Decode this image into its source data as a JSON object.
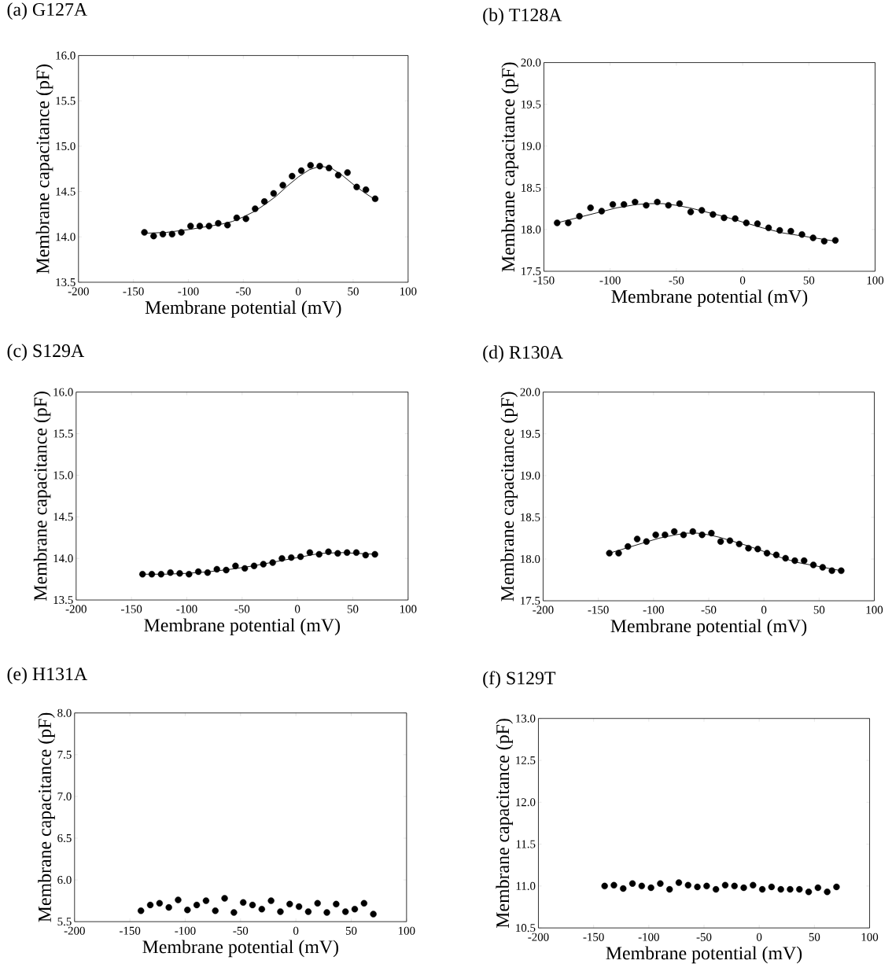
{
  "chart_data": [
    {
      "type": "scatter",
      "title": "(a) G127A",
      "xlabel": "Membrane potential (mV)",
      "ylabel": "Membrane capacitance (pF)",
      "xlim": [
        -200,
        100
      ],
      "ylim": [
        13.5,
        16.0
      ],
      "xticks": [
        -200,
        -150,
        -100,
        -50,
        0,
        50,
        100
      ],
      "yticks": [
        {
          "value": 13.5,
          "label": "13.5"
        },
        {
          "value": 14,
          "label": "14.0"
        },
        {
          "value": 14.5,
          "label": "14.5"
        },
        {
          "value": 15,
          "label": "15.0"
        },
        {
          "value": 15.5,
          "label": "15.5"
        },
        {
          "value": 16,
          "label": "16.0"
        }
      ],
      "series": [
        {
          "marker": "circle",
          "color": "#000000",
          "x": [
            -140,
            -131.6,
            -123.2,
            -114.8,
            -106.4,
            -98,
            -89.6,
            -81.2,
            -72.8,
            -64.4,
            -56,
            -47.6,
            -39.2,
            -30.8,
            -22.4,
            -14,
            -5.6,
            2.8,
            11.2,
            19.6,
            28,
            36.4,
            44.8,
            53.2,
            61.6,
            70
          ],
          "values": [
            14.05,
            14.01,
            14.03,
            14.03,
            14.05,
            14.12,
            14.12,
            14.12,
            14.15,
            14.13,
            14.21,
            14.2,
            14.31,
            14.39,
            14.48,
            14.57,
            14.67,
            14.73,
            14.79,
            14.78,
            14.76,
            14.68,
            14.71,
            14.55,
            14.52,
            14.42
          ]
        },
        {
          "type": "line",
          "color": "#000000",
          "x": [
            -140,
            -120,
            -100,
            -85,
            -70,
            -60,
            -50,
            -40,
            -30,
            -20,
            -10,
            0,
            10,
            20,
            30,
            40,
            50,
            60,
            70
          ],
          "values": [
            14.04,
            14.05,
            14.08,
            14.11,
            14.14,
            14.17,
            14.22,
            14.28,
            14.36,
            14.45,
            14.56,
            14.66,
            14.74,
            14.78,
            14.76,
            14.68,
            14.58,
            14.49,
            14.41
          ]
        }
      ]
    },
    {
      "type": "scatter",
      "title": "(b) T128A",
      "xlabel": "Membrane potential (mV)",
      "ylabel": "Membrane capacitance (pF)",
      "xlim": [
        -150,
        100
      ],
      "ylim": [
        17.5,
        20.0
      ],
      "xticks": [
        -150,
        -100,
        -50,
        0,
        50,
        100
      ],
      "yticks": [
        {
          "value": 17.5,
          "label": "17.5"
        },
        {
          "value": 18,
          "label": "18.0"
        },
        {
          "value": 18.5,
          "label": "18.5"
        },
        {
          "value": 19,
          "label": "19.0"
        },
        {
          "value": 19.5,
          "label": "19.5"
        },
        {
          "value": 20,
          "label": "20.0"
        }
      ],
      "series": [
        {
          "marker": "circle",
          "color": "#000000",
          "x": [
            -140,
            -131.6,
            -123.2,
            -114.8,
            -106.4,
            -98,
            -89.6,
            -81.2,
            -72.8,
            -64.4,
            -56,
            -47.6,
            -39.2,
            -30.8,
            -22.4,
            -14,
            -5.6,
            2.8,
            11.2,
            19.6,
            28,
            36.4,
            44.8,
            53.2,
            61.6,
            70
          ],
          "values": [
            18.08,
            18.08,
            18.16,
            18.26,
            18.22,
            18.3,
            18.3,
            18.33,
            18.29,
            18.33,
            18.29,
            18.31,
            18.21,
            18.23,
            18.18,
            18.14,
            18.13,
            18.08,
            18.07,
            18.02,
            17.99,
            17.98,
            17.94,
            17.9,
            17.86,
            17.87
          ]
        },
        {
          "type": "line",
          "color": "#000000",
          "x": [
            -140,
            -125,
            -110,
            -95,
            -80,
            -70,
            -60,
            -50,
            -40,
            -30,
            -15,
            0,
            15,
            30,
            50,
            70
          ],
          "values": [
            18.08,
            18.14,
            18.2,
            18.26,
            18.3,
            18.31,
            18.31,
            18.29,
            18.26,
            18.22,
            18.16,
            18.09,
            18.02,
            17.96,
            17.91,
            17.86
          ]
        }
      ]
    },
    {
      "type": "scatter",
      "title": "(c) S129A",
      "xlabel": "Membrane potential (mV)",
      "ylabel": "Membrane capacitance (pF)",
      "xlim": [
        -200,
        100
      ],
      "ylim": [
        13.5,
        16.0
      ],
      "xticks": [
        -200,
        -150,
        -100,
        -50,
        0,
        50,
        100
      ],
      "yticks": [
        {
          "value": 13.5,
          "label": "13.5"
        },
        {
          "value": 14,
          "label": "14.0"
        },
        {
          "value": 14.5,
          "label": "14.5"
        },
        {
          "value": 15,
          "label": "15.0"
        },
        {
          "value": 15.5,
          "label": "15.5"
        },
        {
          "value": 16,
          "label": "16.0"
        }
      ],
      "series": [
        {
          "marker": "circle",
          "color": "#000000",
          "x": [
            -140,
            -131.6,
            -123.2,
            -114.8,
            -106.4,
            -98,
            -89.6,
            -81.2,
            -72.8,
            -64.4,
            -56,
            -47.6,
            -39.2,
            -30.8,
            -22.4,
            -14,
            -5.6,
            2.8,
            11.2,
            19.6,
            28,
            36.4,
            44.8,
            53.2,
            61.6,
            70
          ],
          "values": [
            13.81,
            13.81,
            13.81,
            13.83,
            13.82,
            13.81,
            13.84,
            13.83,
            13.87,
            13.86,
            13.91,
            13.88,
            13.91,
            13.93,
            13.95,
            14.0,
            14.01,
            14.02,
            14.07,
            14.05,
            14.08,
            14.06,
            14.07,
            14.07,
            14.04,
            14.05
          ]
        },
        {
          "type": "line",
          "color": "#000000",
          "x": [
            -140,
            -120,
            -100,
            -80,
            -60,
            -40,
            -20,
            0,
            20,
            40,
            55,
            70
          ],
          "values": [
            13.81,
            13.81,
            13.82,
            13.84,
            13.87,
            13.91,
            13.96,
            14.01,
            14.06,
            14.07,
            14.06,
            14.05
          ]
        }
      ]
    },
    {
      "type": "scatter",
      "title": "(d) R130A",
      "xlabel": "Membrane potential (mV)",
      "ylabel": "Membrane capacitance (pF)",
      "xlim": [
        -200,
        100
      ],
      "ylim": [
        17.5,
        20.0
      ],
      "xticks": [
        -200,
        -150,
        -100,
        -50,
        0,
        50,
        100
      ],
      "yticks": [
        {
          "value": 17.5,
          "label": "17.5"
        },
        {
          "value": 18,
          "label": "18.0"
        },
        {
          "value": 18.5,
          "label": "18.5"
        },
        {
          "value": 19,
          "label": "19.0"
        },
        {
          "value": 19.5,
          "label": "19.5"
        },
        {
          "value": 20,
          "label": "20.0"
        }
      ],
      "series": [
        {
          "marker": "circle",
          "color": "#000000",
          "x": [
            -140,
            -131.6,
            -123.2,
            -114.8,
            -106.4,
            -98,
            -89.6,
            -81.2,
            -72.8,
            -64.4,
            -56,
            -47.6,
            -39.2,
            -30.8,
            -22.4,
            -14,
            -5.6,
            2.8,
            11.2,
            19.6,
            28,
            36.4,
            44.8,
            53.2,
            61.6,
            70
          ],
          "values": [
            18.07,
            18.07,
            18.15,
            18.24,
            18.21,
            18.29,
            18.29,
            18.33,
            18.29,
            18.33,
            18.29,
            18.31,
            18.21,
            18.22,
            18.18,
            18.13,
            18.12,
            18.07,
            18.05,
            18.01,
            17.98,
            17.98,
            17.93,
            17.9,
            17.86,
            17.86
          ]
        },
        {
          "type": "line",
          "color": "#000000",
          "x": [
            -140,
            -125,
            -110,
            -95,
            -80,
            -70,
            -60,
            -50,
            -40,
            -30,
            -15,
            0,
            15,
            30,
            50,
            70
          ],
          "values": [
            18.07,
            18.13,
            18.19,
            18.25,
            18.29,
            18.31,
            18.31,
            18.29,
            18.26,
            18.22,
            18.16,
            18.09,
            18.02,
            17.96,
            17.91,
            17.86
          ]
        }
      ]
    },
    {
      "type": "scatter",
      "title": "(e) H131A",
      "xlabel": "Membrane potential (mV)",
      "ylabel": "Membrane capacitance (pF)",
      "xlim": [
        -200,
        100
      ],
      "ylim": [
        5.5,
        8.0
      ],
      "xticks": [
        -200,
        -150,
        -100,
        -50,
        0,
        50,
        100
      ],
      "yticks": [
        {
          "value": 5.5,
          "label": "5.5"
        },
        {
          "value": 6,
          "label": "6.0"
        },
        {
          "value": 6.5,
          "label": "6.5"
        },
        {
          "value": 7,
          "label": "7.0"
        },
        {
          "value": 7.5,
          "label": "7.5"
        },
        {
          "value": 8,
          "label": "8.0"
        }
      ],
      "series": [
        {
          "marker": "circle",
          "color": "#000000",
          "x": [
            -140,
            -131.6,
            -123.2,
            -114.8,
            -106.4,
            -98,
            -89.6,
            -81.2,
            -72.8,
            -64.4,
            -56,
            -47.6,
            -39.2,
            -30.8,
            -22.4,
            -14,
            -5.6,
            2.8,
            11.2,
            19.6,
            28,
            36.4,
            44.8,
            53.2,
            61.6,
            70
          ],
          "values": [
            5.63,
            5.7,
            5.72,
            5.67,
            5.76,
            5.64,
            5.7,
            5.75,
            5.63,
            5.78,
            5.61,
            5.73,
            5.7,
            5.65,
            5.75,
            5.62,
            5.71,
            5.68,
            5.62,
            5.72,
            5.61,
            5.71,
            5.62,
            5.65,
            5.72,
            5.59
          ]
        }
      ]
    },
    {
      "type": "scatter",
      "title": "(f) S129T",
      "xlabel": "Membrane potential (mV)",
      "ylabel": "Membrane capacitance (pF)",
      "xlim": [
        -200,
        100
      ],
      "ylim": [
        10.5,
        13.0
      ],
      "xticks": [
        -200,
        -150,
        -100,
        -50,
        0,
        50,
        100
      ],
      "yticks": [
        {
          "value": 10.5,
          "label": "10.5"
        },
        {
          "value": 11,
          "label": "11.0"
        },
        {
          "value": 11.5,
          "label": "11.5"
        },
        {
          "value": 12,
          "label": "12.0"
        },
        {
          "value": 12.5,
          "label": "12.5"
        },
        {
          "value": 13,
          "label": "13.0"
        }
      ],
      "series": [
        {
          "marker": "circle",
          "color": "#000000",
          "x": [
            -140,
            -131.6,
            -123.2,
            -114.8,
            -106.4,
            -98,
            -89.6,
            -81.2,
            -72.8,
            -64.4,
            -56,
            -47.6,
            -39.2,
            -30.8,
            -22.4,
            -14,
            -5.6,
            2.8,
            11.2,
            19.6,
            28,
            36.4,
            44.8,
            53.2,
            61.6,
            70
          ],
          "values": [
            11.0,
            11.01,
            10.97,
            11.03,
            11.0,
            10.98,
            11.03,
            10.96,
            11.04,
            11.01,
            10.99,
            11.0,
            10.96,
            11.01,
            11.0,
            10.98,
            11.01,
            10.96,
            10.99,
            10.96,
            10.96,
            10.96,
            10.93,
            10.98,
            10.93,
            10.99
          ]
        }
      ]
    }
  ]
}
